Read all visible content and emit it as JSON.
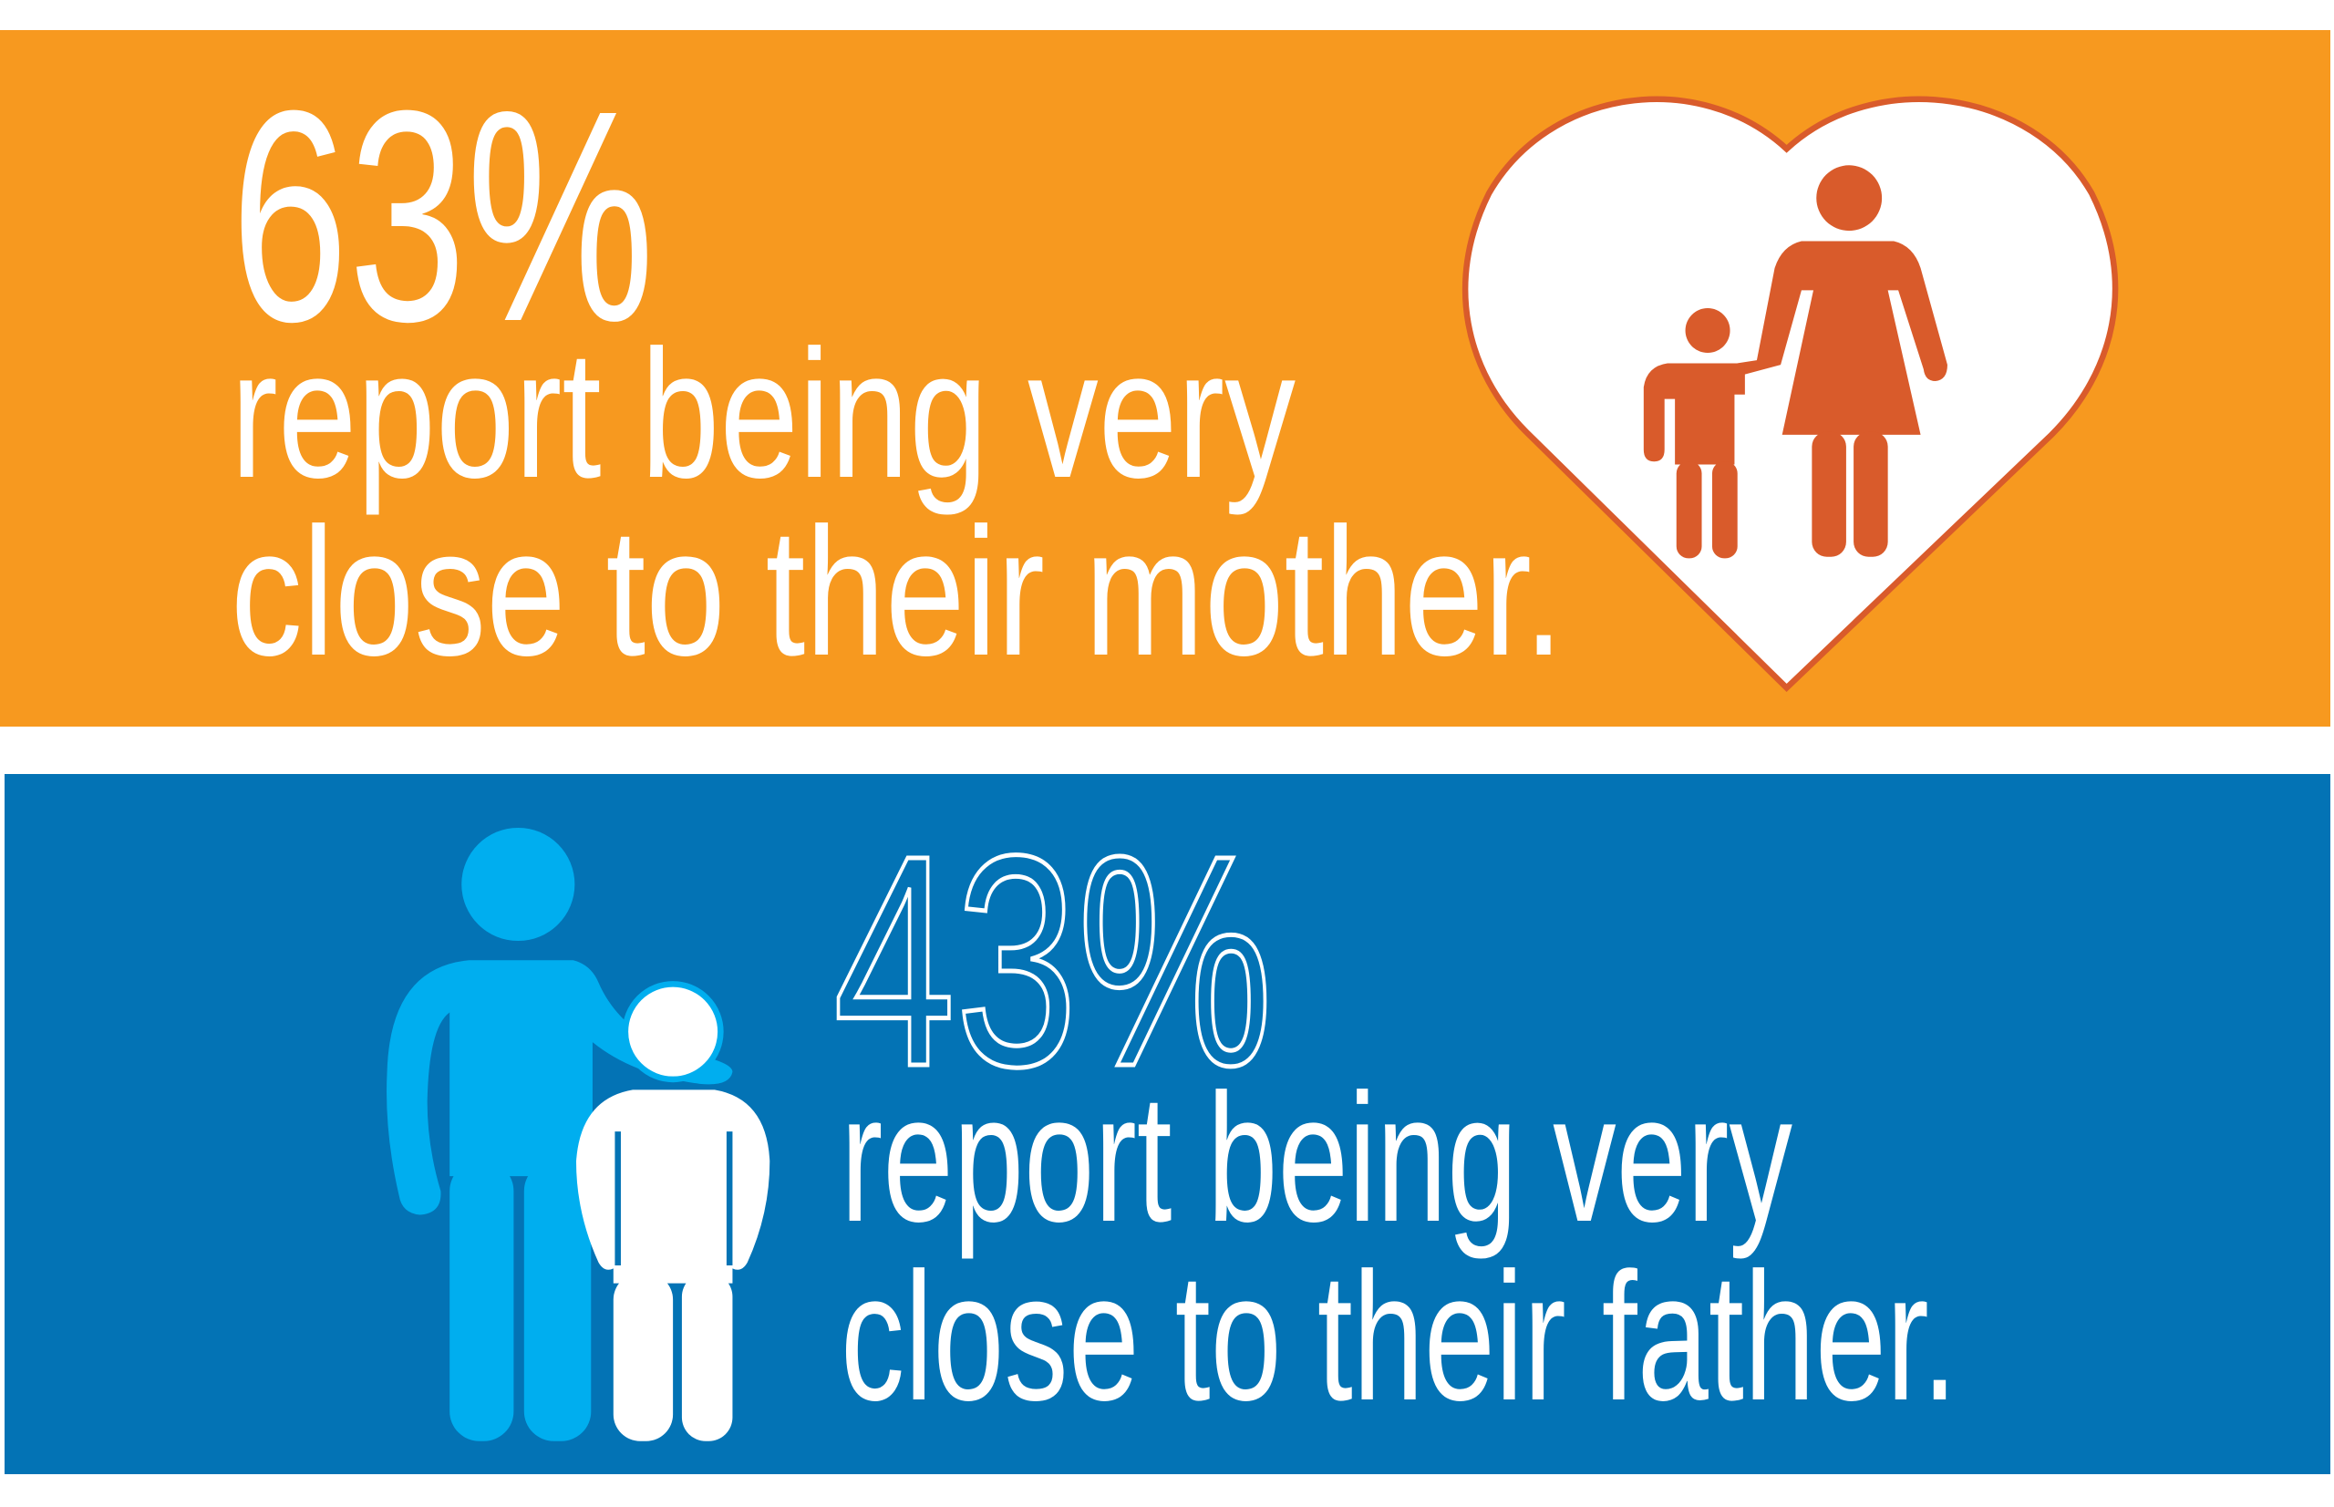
{
  "panels": [
    {
      "stat": "63%",
      "lines": [
        "report being very",
        "close to their mother."
      ]
    },
    {
      "stat": "43%",
      "lines": [
        "report being very",
        "close to their father."
      ]
    }
  ]
}
